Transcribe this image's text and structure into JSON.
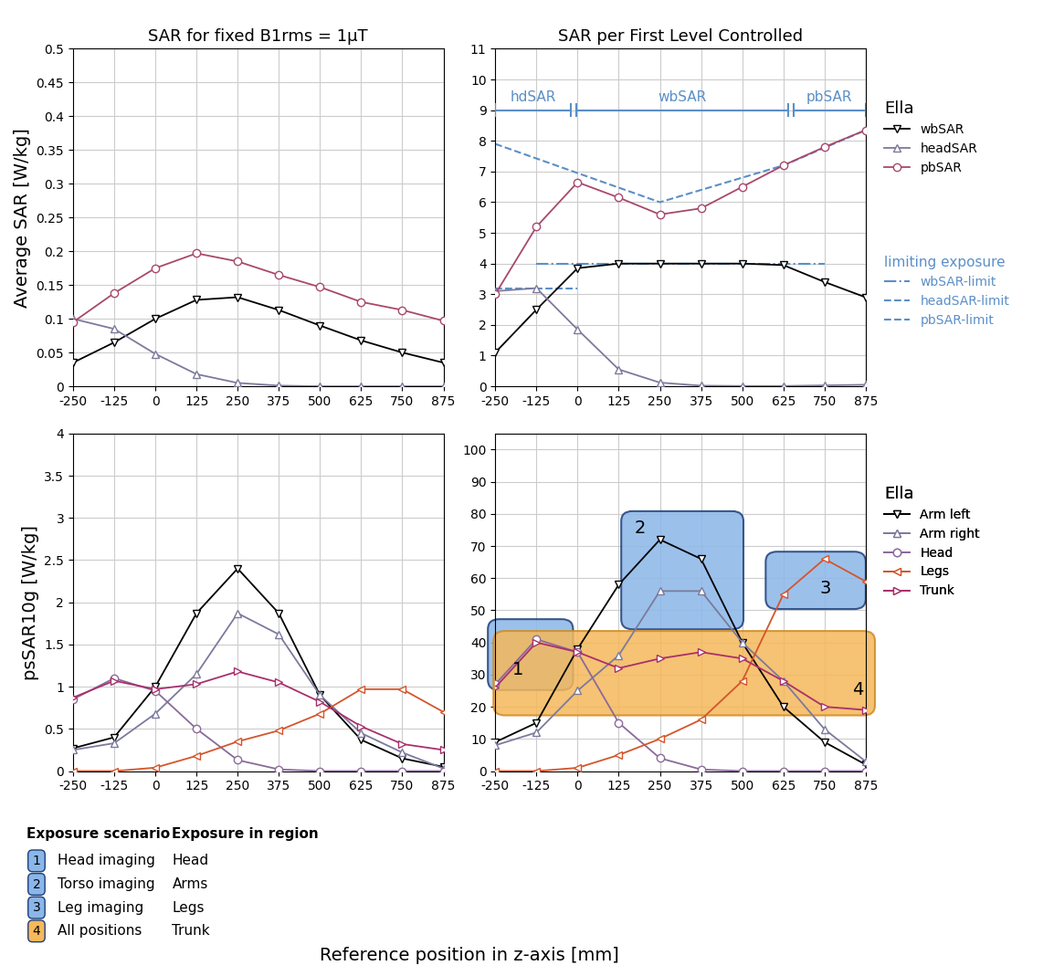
{
  "chart_data": [
    {
      "type": "line",
      "title": "SAR for fixed B1rms = 1µT",
      "ylabel": "Average SAR [W/kg]",
      "x": [
        -250,
        -125,
        0,
        125,
        250,
        375,
        500,
        625,
        750,
        875
      ],
      "xlim": [
        -250,
        875
      ],
      "xticks": [
        -250,
        -125,
        0,
        125,
        250,
        375,
        500,
        625,
        750,
        875
      ],
      "ylim": [
        0,
        0.5
      ],
      "yticks": [
        0,
        0.05,
        0.1,
        0.15,
        0.2,
        0.25,
        0.3,
        0.35,
        0.4,
        0.45,
        0.5
      ],
      "grid": true,
      "series": [
        {
          "name": "wbSAR",
          "color": "#000000",
          "marker": "triangle_down",
          "line_style": "solid",
          "values": [
            0.035,
            0.065,
            0.1,
            0.128,
            0.132,
            0.113,
            0.09,
            0.068,
            0.05,
            0.035
          ]
        },
        {
          "name": "headSAR",
          "color": "#7c7a9c",
          "marker": "triangle_up",
          "line_style": "solid",
          "values": [
            0.1,
            0.085,
            0.048,
            0.018,
            0.005,
            0.001,
            0,
            0,
            0,
            0
          ]
        },
        {
          "name": "pbSAR",
          "color": "#a8486c",
          "marker": "circle",
          "line_style": "solid",
          "values": [
            0.095,
            0.138,
            0.175,
            0.197,
            0.185,
            0.165,
            0.147,
            0.125,
            0.113,
            0.097
          ]
        }
      ]
    },
    {
      "type": "line",
      "title": "SAR per First Level Controlled",
      "x": [
        -250,
        -125,
        0,
        125,
        250,
        375,
        500,
        625,
        750,
        875
      ],
      "xlim": [
        -250,
        875
      ],
      "xticks": [
        -250,
        -125,
        0,
        125,
        250,
        375,
        500,
        625,
        750,
        875
      ],
      "ylim": [
        0,
        11
      ],
      "yticks": [
        0,
        1,
        2,
        3,
        4,
        5,
        6,
        7,
        8,
        9,
        10,
        11
      ],
      "grid": true,
      "legend": "outside right",
      "legend_title": "Ella",
      "series": [
        {
          "name": "wbSAR",
          "color": "#000000",
          "marker": "triangle_down",
          "line_style": "solid",
          "values": [
            1.1,
            2.5,
            3.85,
            4.0,
            4.0,
            4.0,
            4.0,
            3.95,
            3.4,
            2.9
          ]
        },
        {
          "name": "headSAR",
          "color": "#7c7a9c",
          "marker": "triangle_up",
          "line_style": "solid",
          "values": [
            3.1,
            3.2,
            1.85,
            0.55,
            0.12,
            0.02,
            0.01,
            0.01,
            0.03,
            0.05
          ]
        },
        {
          "name": "pbSAR",
          "color": "#a8486c",
          "marker": "circle",
          "line_style": "solid",
          "values": [
            3.0,
            5.2,
            6.65,
            6.15,
            5.6,
            5.8,
            6.5,
            7.2,
            7.8,
            8.35
          ]
        }
      ],
      "limits": {
        "title": "limiting exposure",
        "series": [
          {
            "name": "wbSAR-limit",
            "color": "#5b8fc7",
            "line_style": "dashdot",
            "x": [
              -125,
              750
            ],
            "values": [
              4.0,
              4.0
            ]
          },
          {
            "name": "headSAR-limit",
            "color": "#5b8fc7",
            "line_style": "dashed",
            "x": [
              -250,
              0
            ],
            "values": [
              3.2,
              3.2
            ]
          },
          {
            "name": "pbSAR-limit",
            "color": "#5b8fc7",
            "line_style": "dashed",
            "x": [
              -250,
              0,
              250,
              625,
              875
            ],
            "values": [
              7.9,
              6.95,
              6.0,
              7.2,
              8.35
            ]
          }
        ]
      },
      "brackets": [
        {
          "label": "hdSAR",
          "x": [
            -250,
            -20
          ],
          "y": 9
        },
        {
          "label": "wbSAR",
          "x": [
            -5,
            640
          ],
          "y": 9
        },
        {
          "label": "pbSAR",
          "x": [
            655,
            875
          ],
          "y": 9
        }
      ]
    },
    {
      "type": "line",
      "ylabel": "psSAR10g [W/kg]",
      "x": [
        -250,
        -125,
        0,
        125,
        250,
        375,
        500,
        625,
        750,
        875
      ],
      "xlim": [
        -250,
        875
      ],
      "xticks": [
        -250,
        -125,
        0,
        125,
        250,
        375,
        500,
        625,
        750,
        875
      ],
      "ylim": [
        0,
        4
      ],
      "yticks": [
        0,
        0.5,
        1,
        1.5,
        2,
        2.5,
        3,
        3.5,
        4
      ],
      "grid": true,
      "series": [
        {
          "name": "Arm left",
          "color": "#000000",
          "marker": "triangle_down",
          "line_style": "solid",
          "values": [
            0.27,
            0.4,
            1.0,
            1.87,
            2.4,
            1.87,
            0.9,
            0.37,
            0.15,
            0.05
          ]
        },
        {
          "name": "Arm right",
          "color": "#7c7a9c",
          "marker": "triangle_up",
          "line_style": "solid",
          "values": [
            0.25,
            0.33,
            0.68,
            1.15,
            1.87,
            1.62,
            0.9,
            0.45,
            0.22,
            0.03
          ]
        },
        {
          "name": "Head",
          "color": "#8a6a9a",
          "marker": "circle",
          "line_style": "solid",
          "values": [
            0.85,
            1.1,
            0.95,
            0.5,
            0.13,
            0.02,
            0,
            0,
            0,
            0
          ]
        },
        {
          "name": "Legs",
          "color": "#d4552b",
          "marker": "triangle_left",
          "line_style": "solid",
          "values": [
            0,
            0,
            0.04,
            0.18,
            0.35,
            0.48,
            0.68,
            0.97,
            0.97,
            0.7
          ]
        },
        {
          "name": "Trunk",
          "color": "#a8306c",
          "marker": "triangle_right",
          "line_style": "solid",
          "values": [
            0.87,
            1.07,
            0.97,
            1.03,
            1.18,
            1.05,
            0.82,
            0.53,
            0.32,
            0.25
          ]
        }
      ]
    },
    {
      "type": "line",
      "x": [
        -250,
        -125,
        0,
        125,
        250,
        375,
        500,
        625,
        750,
        875
      ],
      "xlim": [
        -250,
        875
      ],
      "xticks": [
        -250,
        -125,
        0,
        125,
        250,
        375,
        500,
        625,
        750,
        875
      ],
      "ylim": [
        0,
        105
      ],
      "yticks": [
        0,
        10,
        20,
        30,
        40,
        50,
        60,
        70,
        80,
        90,
        100
      ],
      "grid": true,
      "legend": "outside right",
      "legend_title": "Ella",
      "series": [
        {
          "name": "Arm left",
          "color": "#000000",
          "marker": "triangle_down",
          "line_style": "solid",
          "values": [
            9,
            15,
            38,
            58,
            72,
            66,
            40,
            20,
            9,
            2
          ]
        },
        {
          "name": "Arm right",
          "color": "#7c7a9c",
          "marker": "triangle_up",
          "line_style": "solid",
          "values": [
            8,
            12,
            25,
            36,
            56,
            56,
            40,
            28,
            13,
            3
          ]
        },
        {
          "name": "Head",
          "color": "#8a6a9a",
          "marker": "circle",
          "line_style": "solid",
          "values": [
            27,
            41,
            37,
            15,
            4,
            0.5,
            0,
            0,
            0,
            0
          ]
        },
        {
          "name": "Legs",
          "color": "#d4552b",
          "marker": "triangle_left",
          "line_style": "solid",
          "values": [
            0,
            0,
            1,
            5,
            10,
            16,
            28,
            55,
            66,
            59
          ]
        },
        {
          "name": "Trunk",
          "color": "#a8306c",
          "marker": "triangle_right",
          "line_style": "solid",
          "values": [
            26,
            40,
            37,
            32,
            35,
            37,
            35,
            28,
            20,
            19
          ]
        }
      ],
      "regions": [
        {
          "label": "1",
          "color": "#8ab6e8"
        },
        {
          "label": "2",
          "color": "#8ab6e8"
        },
        {
          "label": "3",
          "color": "#8ab6e8"
        },
        {
          "label": "4",
          "color": "#f5b85a"
        }
      ]
    }
  ],
  "xlabel": "Reference position in z-axis [mm]",
  "exposure_table": {
    "headers": [
      "Exposure scenario",
      "Exposure in region"
    ],
    "rows": [
      {
        "number": "1",
        "scenario": "Head imaging",
        "region": "Head",
        "color": "#8ab6e8"
      },
      {
        "number": "2",
        "scenario": "Torso imaging",
        "region": "Arms",
        "color": "#8ab6e8"
      },
      {
        "number": "3",
        "scenario": "Leg imaging",
        "region": "Legs",
        "color": "#8ab6e8"
      },
      {
        "number": "4",
        "scenario": "All positions",
        "region": "Trunk",
        "color": "#f5b85a"
      }
    ]
  }
}
